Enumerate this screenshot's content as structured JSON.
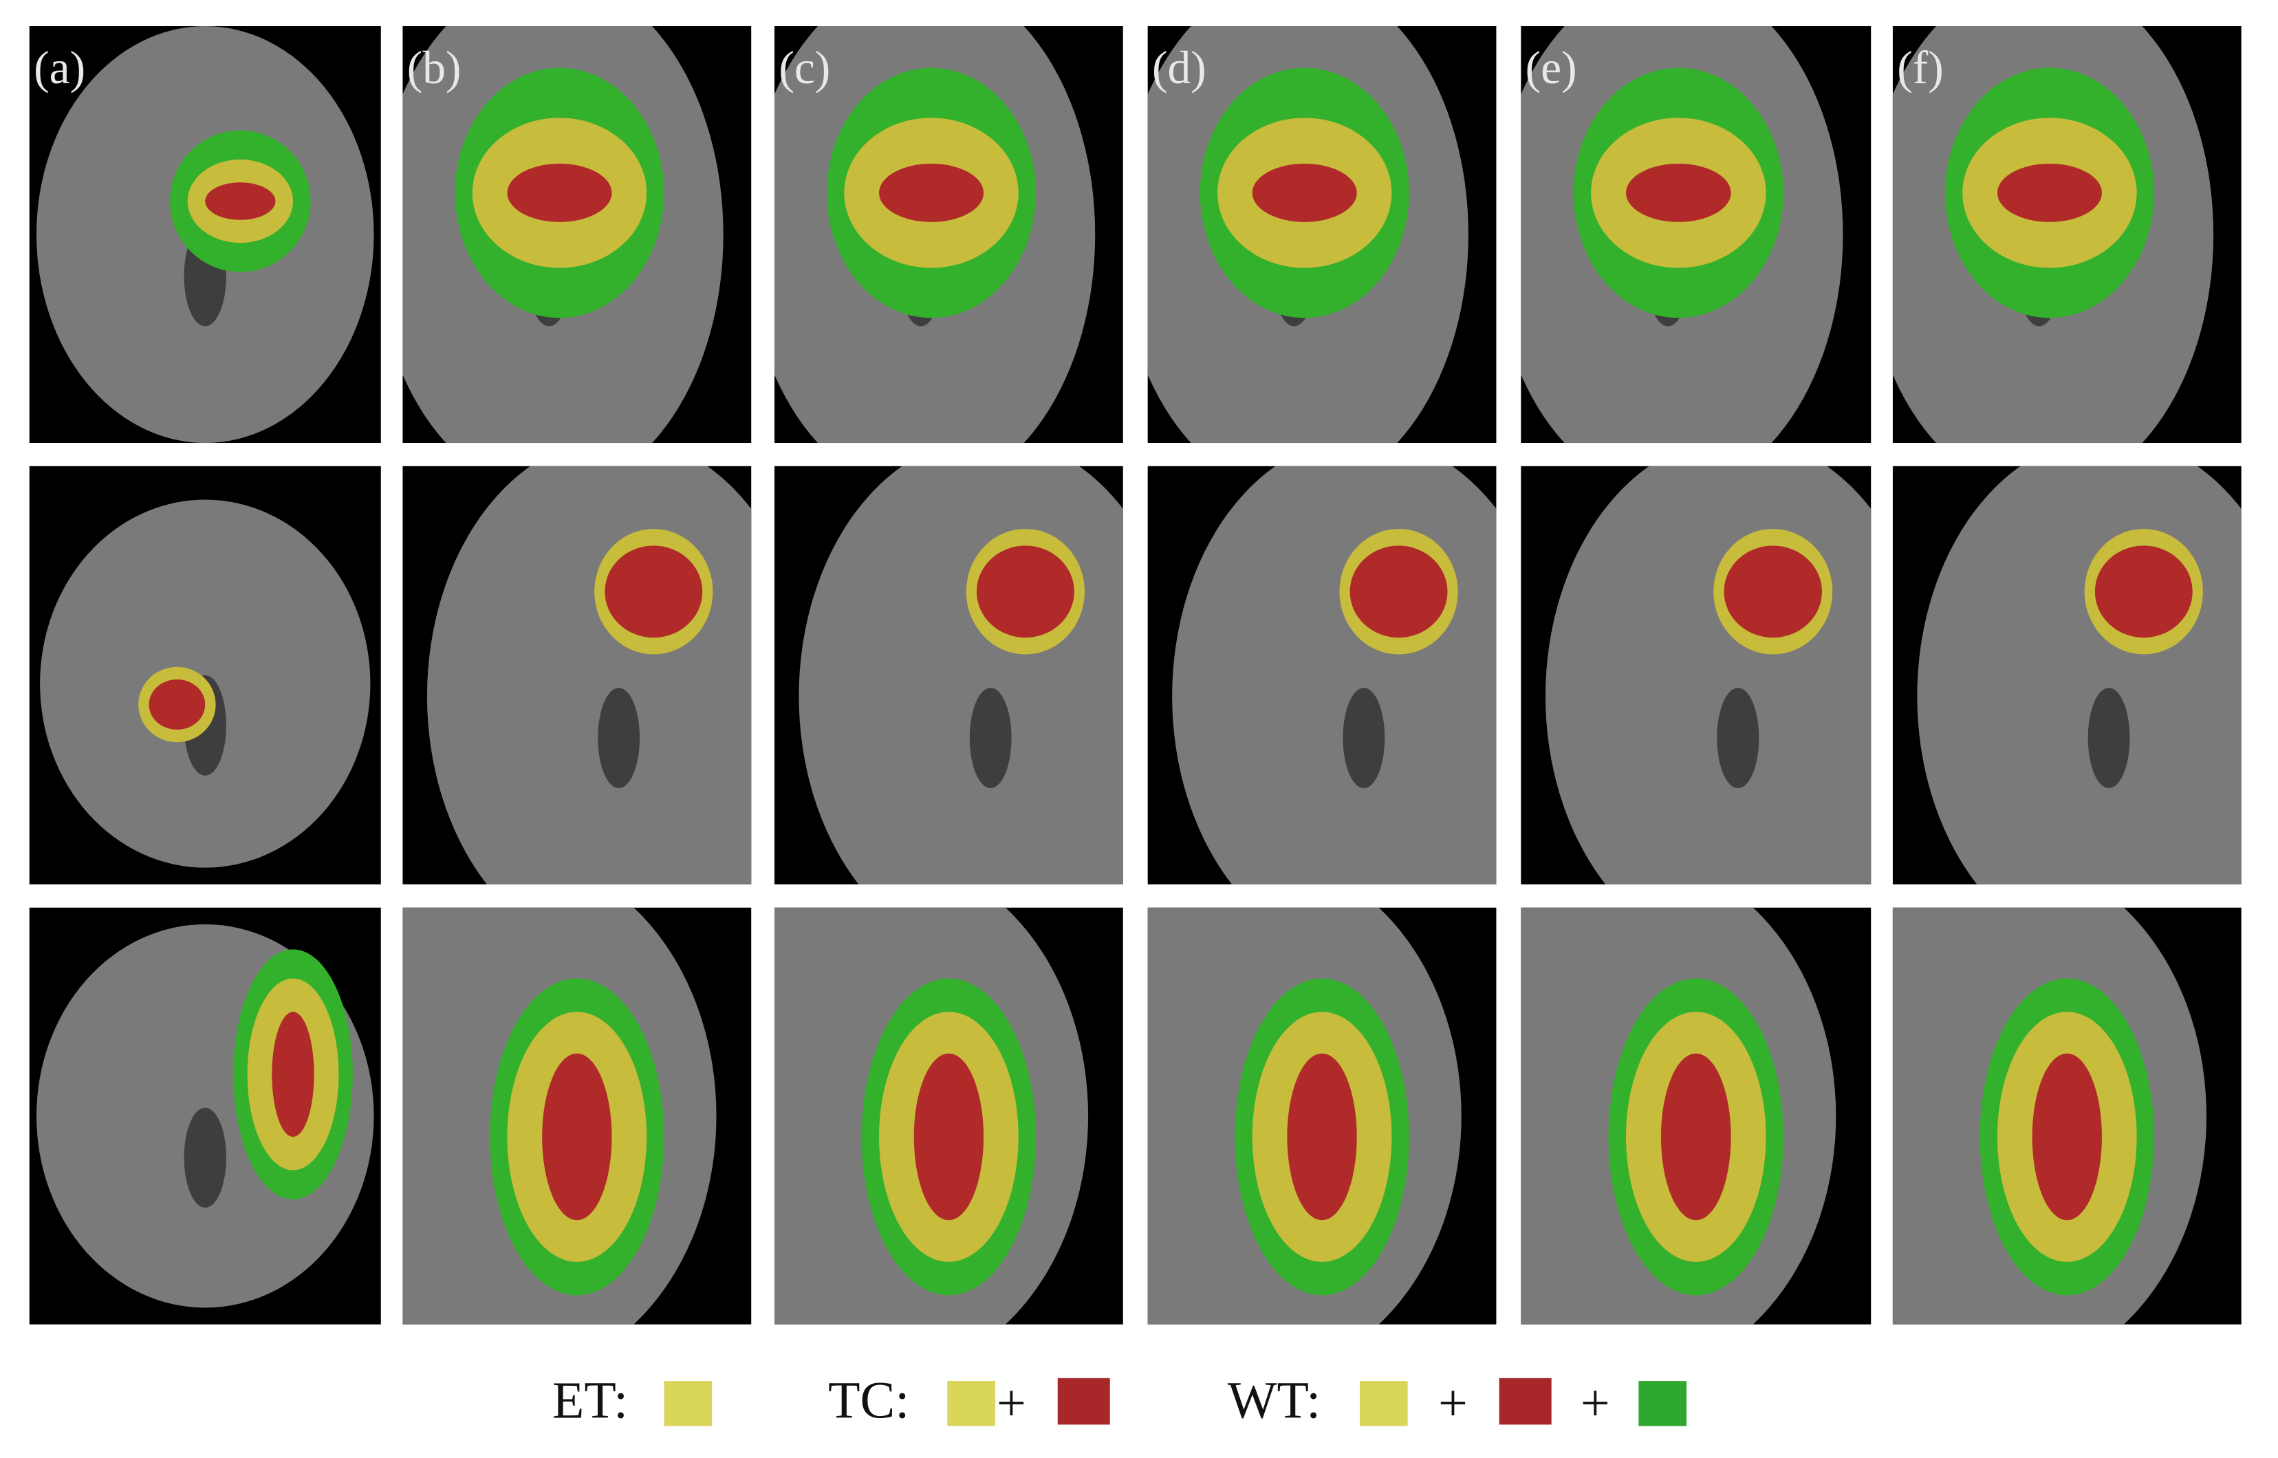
{
  "panel_labels": [
    "(a)",
    "(b)",
    "(c)",
    "(d)",
    "(e)",
    "(f)"
  ],
  "legend": {
    "et": "ET:",
    "tc": "TC:",
    "tc_plus": "+",
    "wt": "WT:",
    "wt_plus": [
      "+",
      "+"
    ]
  }
}
